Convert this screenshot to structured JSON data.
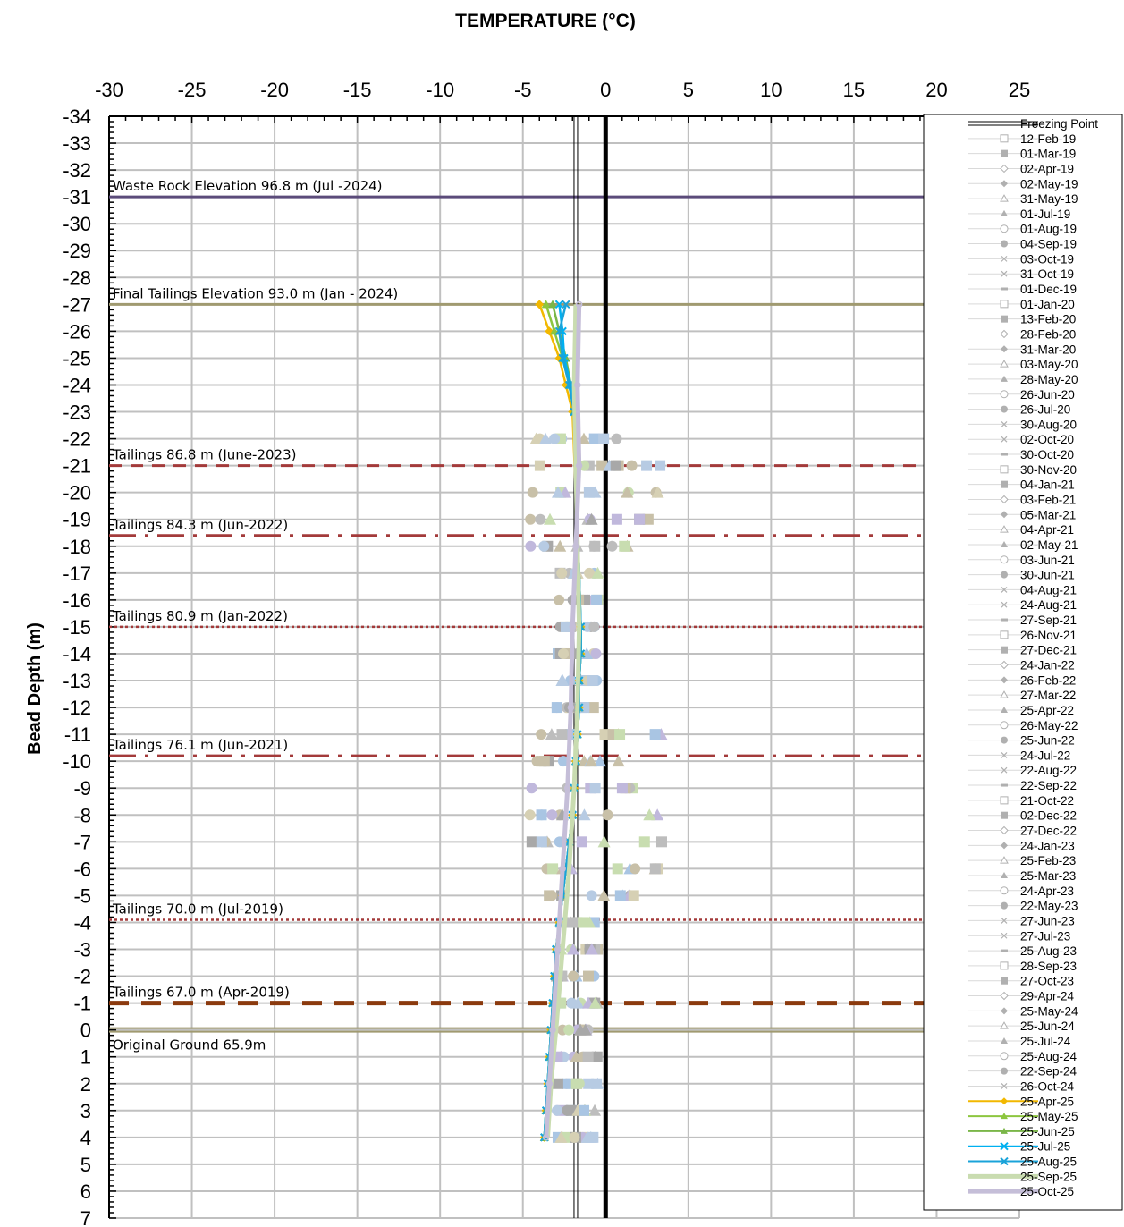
{
  "chart_data": {
    "type": "line",
    "title": "TEMPERATURE (°C)",
    "xlabel": "",
    "ylabel": "Bead Depth (m)",
    "xlim": [
      -30,
      25
    ],
    "ylim": [
      -34,
      7
    ],
    "x_ticks": [
      -30,
      -25,
      -20,
      -15,
      -10,
      -5,
      0,
      5,
      10,
      15,
      20,
      25
    ],
    "y_ticks": [
      -34,
      -33,
      -32,
      -31,
      -30,
      -29,
      -28,
      -27,
      -26,
      -25,
      -24,
      -23,
      -22,
      -21,
      -20,
      -19,
      -18,
      -17,
      -16,
      -15,
      -14,
      -13,
      -12,
      -11,
      -10,
      -9,
      -8,
      -7,
      -6,
      -5,
      -4,
      -3,
      -2,
      -1,
      0,
      1,
      2,
      3,
      4,
      5,
      6,
      7
    ],
    "x_tick_labels": [
      "-30",
      "-25",
      "-20",
      "-15",
      "-10",
      "-5",
      "0",
      "5",
      "10",
      "15",
      "20",
      "25"
    ],
    "y_tick_labels": [
      "-34",
      "-33",
      "-32",
      "-31",
      "-30",
      "-29",
      "-28",
      "-27",
      "-26",
      "-25",
      "-24",
      "-23",
      "-22",
      "-21",
      "-20",
      "-19",
      "-18",
      "-17",
      "-16",
      "-15",
      "-14",
      "-13",
      "-12",
      "-11",
      "-10",
      "-9",
      "-8",
      "-7",
      "-6",
      "-5",
      "-4",
      "-3",
      "-2",
      "-1",
      "0",
      "1",
      "2",
      "3",
      "4",
      "5",
      "6",
      "7"
    ],
    "grid": true,
    "legend_position": "right",
    "freezing_point": {
      "name": "Freezing Point",
      "x": -1.8
    },
    "zero_line": 0,
    "annotations": [
      {
        "text": "Waste Rock Elevation 96.8 m (Jul -2024)",
        "depth": -31,
        "style": "solid",
        "color": "#5b4b7a"
      },
      {
        "text": "Final Tailings Elevation 93.0 m (Jan - 2024)",
        "depth": -27,
        "style": "solid",
        "color": "#a09a70"
      },
      {
        "text": "Tailings 86.8 m (June-2023)",
        "depth": -21,
        "style": "dash",
        "color": "#a33a3a"
      },
      {
        "text": "Tailings 84.3 m (Jun-2022)",
        "depth": -18.4,
        "style": "dashdot",
        "color": "#a33a3a"
      },
      {
        "text": "Tailings 80.9 m (Jan-2022)",
        "depth": -15,
        "style": "dot",
        "color": "#a33a3a"
      },
      {
        "text": "Tailings 76.1 m (Jun-2021)",
        "depth": -10.2,
        "style": "dashdot",
        "color": "#a33a3a"
      },
      {
        "text": "Tailings 70.0 m (Jul-2019)",
        "depth": -4.1,
        "style": "dot",
        "color": "#a33a3a"
      },
      {
        "text": "Tailings 67.0 m (Apr-2019)",
        "depth": -1,
        "style": "bigdash",
        "color": "#8b3a0e"
      },
      {
        "text": "Original Ground 65.9m",
        "depth": 0,
        "style": "solid",
        "color": "#a09a70"
      }
    ],
    "legend": [
      "Freezing Point",
      "12-Feb-19",
      "01-Mar-19",
      "02-Apr-19",
      "02-May-19",
      "31-May-19",
      "01-Jul-19",
      "01-Aug-19",
      "04-Sep-19",
      "03-Oct-19",
      "31-Oct-19",
      "01-Dec-19",
      "01-Jan-20",
      "13-Feb-20",
      "28-Feb-20",
      "31-Mar-20",
      "03-May-20",
      "28-May-20",
      "26-Jun-20",
      "26-Jul-20",
      "30-Aug-20",
      "02-Oct-20",
      "30-Oct-20",
      "30-Nov-20",
      "04-Jan-21",
      "03-Feb-21",
      "05-Mar-21",
      "04-Apr-21",
      "02-May-21",
      "03-Jun-21",
      "30-Jun-21",
      "04-Aug-21",
      "24-Aug-21",
      "27-Sep-21",
      "26-Nov-21",
      "27-Dec-21",
      "24-Jan-22",
      "26-Feb-22",
      "27-Mar-22",
      "25-Apr-22",
      "26-May-22",
      "25-Jun-22",
      "24-Jul-22",
      "22-Aug-22",
      "22-Sep-22",
      "21-Oct-22",
      "02-Dec-22",
      "27-Dec-22",
      "24-Jan-23",
      "25-Feb-23",
      "25-Mar-23",
      "24-Apr-23",
      "22-May-23",
      "27-Jun-23",
      "27-Jul-23",
      "25-Aug-23",
      "28-Sep-23",
      "27-Oct-23",
      "29-Apr-24",
      "25-May-24",
      "25-Jun-24",
      "25-Jul-24",
      "25-Aug-24",
      "22-Sep-24",
      "26-Oct-24",
      "25-Apr-25",
      "25-May-25",
      "25-Jun-25",
      "25-Jul-25",
      "25-Aug-25",
      "25-Sep-25",
      "25-Oct-25"
    ],
    "series": [
      {
        "name": "25-Apr-25",
        "color": "#f2b800",
        "marker": "diamond",
        "points": [
          [
            -4.0,
            -27
          ],
          [
            -3.4,
            -26
          ],
          [
            -2.8,
            -25
          ],
          [
            -2.4,
            -24
          ],
          [
            -2.0,
            -23
          ],
          [
            -1.5,
            -15
          ],
          [
            -1.5,
            -14
          ],
          [
            -1.6,
            -13
          ],
          [
            -1.6,
            -12
          ],
          [
            -1.7,
            -11
          ],
          [
            -1.8,
            -10
          ],
          [
            -1.9,
            -9
          ],
          [
            -2.0,
            -8
          ],
          [
            -2.2,
            -7
          ],
          [
            -2.4,
            -6
          ],
          [
            -2.6,
            -5
          ],
          [
            -2.8,
            -4
          ],
          [
            -3.0,
            -3
          ],
          [
            -3.1,
            -2
          ],
          [
            -3.2,
            -1
          ],
          [
            -3.3,
            0
          ],
          [
            -3.4,
            1
          ],
          [
            -3.5,
            2
          ],
          [
            -3.6,
            3
          ],
          [
            -3.7,
            4
          ]
        ]
      },
      {
        "name": "25-May-25",
        "color": "#8dc63f",
        "marker": "triangle",
        "points": [
          [
            -3.6,
            -27
          ],
          [
            -3.1,
            -26
          ],
          [
            -2.6,
            -25
          ],
          [
            -2.2,
            -24
          ],
          [
            -1.9,
            -23
          ],
          [
            -1.5,
            -15
          ],
          [
            -1.5,
            -14
          ],
          [
            -1.6,
            -13
          ],
          [
            -1.6,
            -12
          ],
          [
            -1.7,
            -11
          ],
          [
            -1.8,
            -10
          ],
          [
            -1.9,
            -9
          ],
          [
            -2.0,
            -8
          ],
          [
            -2.2,
            -7
          ],
          [
            -2.4,
            -6
          ],
          [
            -2.6,
            -5
          ],
          [
            -2.8,
            -4
          ],
          [
            -3.0,
            -3
          ],
          [
            -3.1,
            -2
          ],
          [
            -3.2,
            -1
          ],
          [
            -3.3,
            0
          ],
          [
            -3.4,
            1
          ],
          [
            -3.5,
            2
          ],
          [
            -3.6,
            3
          ],
          [
            -3.7,
            4
          ]
        ]
      },
      {
        "name": "25-Jun-25",
        "color": "#7ab648",
        "marker": "triangle",
        "points": [
          [
            -3.2,
            -27
          ],
          [
            -2.8,
            -26
          ],
          [
            -2.4,
            -25
          ],
          [
            -2.1,
            -24
          ],
          [
            -1.9,
            -23
          ],
          [
            -1.5,
            -15
          ],
          [
            -1.5,
            -14
          ],
          [
            -1.6,
            -13
          ],
          [
            -1.6,
            -12
          ],
          [
            -1.7,
            -11
          ],
          [
            -1.8,
            -10
          ],
          [
            -1.9,
            -9
          ],
          [
            -2.0,
            -8
          ],
          [
            -2.2,
            -7
          ],
          [
            -2.4,
            -6
          ],
          [
            -2.6,
            -5
          ],
          [
            -2.8,
            -4
          ],
          [
            -3.0,
            -3
          ],
          [
            -3.1,
            -2
          ],
          [
            -3.2,
            -1
          ],
          [
            -3.3,
            0
          ],
          [
            -3.4,
            1
          ],
          [
            -3.5,
            2
          ],
          [
            -3.6,
            3
          ],
          [
            -3.7,
            4
          ]
        ]
      },
      {
        "name": "25-Jul-25",
        "color": "#00b0f0",
        "marker": "x",
        "points": [
          [
            -2.8,
            -27
          ],
          [
            -2.6,
            -26
          ],
          [
            -2.5,
            -25
          ],
          [
            -2.1,
            -24
          ],
          [
            -1.9,
            -23
          ],
          [
            -1.5,
            -15
          ],
          [
            -1.5,
            -14
          ],
          [
            -1.6,
            -13
          ],
          [
            -1.6,
            -12
          ],
          [
            -1.7,
            -11
          ],
          [
            -1.8,
            -10
          ],
          [
            -1.9,
            -9
          ],
          [
            -2.0,
            -8
          ],
          [
            -2.2,
            -7
          ],
          [
            -2.4,
            -6
          ],
          [
            -2.6,
            -5
          ],
          [
            -2.8,
            -4
          ],
          [
            -3.0,
            -3
          ],
          [
            -3.1,
            -2
          ],
          [
            -3.2,
            -1
          ],
          [
            -3.3,
            0
          ],
          [
            -3.4,
            1
          ],
          [
            -3.5,
            2
          ],
          [
            -3.6,
            3
          ],
          [
            -3.7,
            4
          ]
        ]
      },
      {
        "name": "25-Aug-25",
        "color": "#1aa3d9",
        "marker": "star",
        "points": [
          [
            -2.4,
            -27
          ],
          [
            -2.8,
            -26
          ],
          [
            -2.6,
            -25
          ],
          [
            -2.2,
            -24
          ],
          [
            -1.9,
            -23
          ],
          [
            -1.5,
            -15
          ],
          [
            -1.5,
            -14
          ],
          [
            -1.6,
            -13
          ],
          [
            -1.6,
            -12
          ],
          [
            -1.7,
            -11
          ],
          [
            -1.8,
            -10
          ],
          [
            -1.9,
            -9
          ],
          [
            -2.0,
            -8
          ],
          [
            -2.2,
            -7
          ],
          [
            -2.4,
            -6
          ],
          [
            -2.6,
            -5
          ],
          [
            -2.8,
            -4
          ],
          [
            -3.0,
            -3
          ],
          [
            -3.1,
            -2
          ],
          [
            -3.2,
            -1
          ],
          [
            -3.3,
            0
          ],
          [
            -3.4,
            1
          ],
          [
            -3.5,
            2
          ],
          [
            -3.6,
            3
          ],
          [
            -3.7,
            4
          ]
        ]
      },
      {
        "name": "25-Sep-25",
        "color": "#c9dcb0",
        "marker": "none",
        "points": [
          [
            -1.8,
            -27
          ],
          [
            -1.9,
            -24
          ],
          [
            -1.8,
            -21
          ],
          [
            -1.7,
            -18
          ],
          [
            -1.6,
            -15
          ],
          [
            -1.7,
            -12
          ],
          [
            -1.9,
            -9
          ],
          [
            -2.2,
            -6
          ],
          [
            -2.6,
            -3
          ],
          [
            -3.0,
            0
          ],
          [
            -3.3,
            2
          ],
          [
            -3.5,
            4
          ]
        ]
      },
      {
        "name": "25-Oct-25",
        "color": "#c5bed8",
        "marker": "circle",
        "points": [
          [
            -1.6,
            -27
          ],
          [
            -1.7,
            -24
          ],
          [
            -1.6,
            -21
          ],
          [
            -1.8,
            -18
          ],
          [
            -2.0,
            -15
          ],
          [
            -2.1,
            -12
          ],
          [
            -2.3,
            -9
          ],
          [
            -2.6,
            -6
          ],
          [
            -2.9,
            -3
          ],
          [
            -3.2,
            0
          ],
          [
            -3.4,
            2
          ],
          [
            -3.6,
            4
          ]
        ]
      }
    ]
  }
}
